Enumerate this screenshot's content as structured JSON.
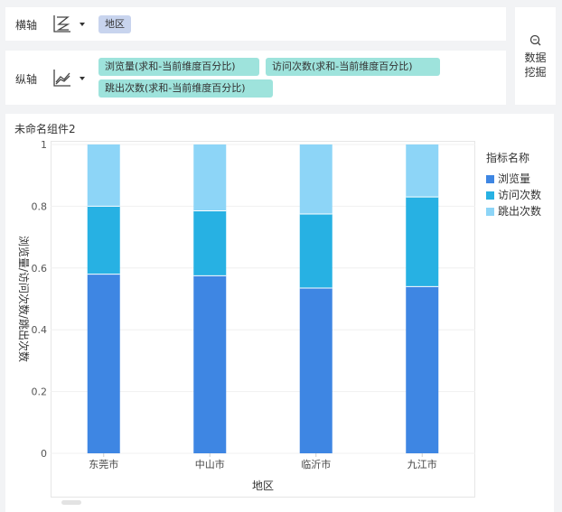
{
  "axes": {
    "x": {
      "label": "横轴",
      "icon": "chart-type-icon",
      "tags": [
        "地区"
      ]
    },
    "y": {
      "label": "纵轴",
      "icon": "line-chart-icon",
      "tags": [
        "浏览量(求和-当前维度百分比)",
        "访问次数(求和-当前维度百分比)",
        "跳出次数(求和-当前维度百分比)"
      ]
    }
  },
  "mining": {
    "icon": "search-mining-icon",
    "line1": "数据",
    "line2": "挖掘"
  },
  "chart_title": "未命名组件2",
  "colors": {
    "browse": "#3e86e3",
    "visits": "#27b1e3",
    "bounce": "#8dd5f7"
  },
  "chart_data": {
    "type": "bar",
    "stacked": true,
    "categories": [
      "东莞市",
      "中山市",
      "临沂市",
      "九江市"
    ],
    "series": [
      {
        "name": "浏览量",
        "values": [
          0.58,
          0.575,
          0.535,
          0.54
        ]
      },
      {
        "name": "访问次数",
        "values": [
          0.22,
          0.21,
          0.24,
          0.29
        ]
      },
      {
        "name": "跳出次数",
        "values": [
          0.2,
          0.215,
          0.225,
          0.17
        ]
      }
    ],
    "xlabel": "地区",
    "ylabel": "浏览量/访问次数/跳出次数",
    "ylim": [
      0,
      1
    ],
    "yticks": [
      "0",
      "0.2",
      "0.4",
      "0.6",
      "0.8",
      "1"
    ],
    "legend_title": "指标名称",
    "legend_position": "right"
  }
}
